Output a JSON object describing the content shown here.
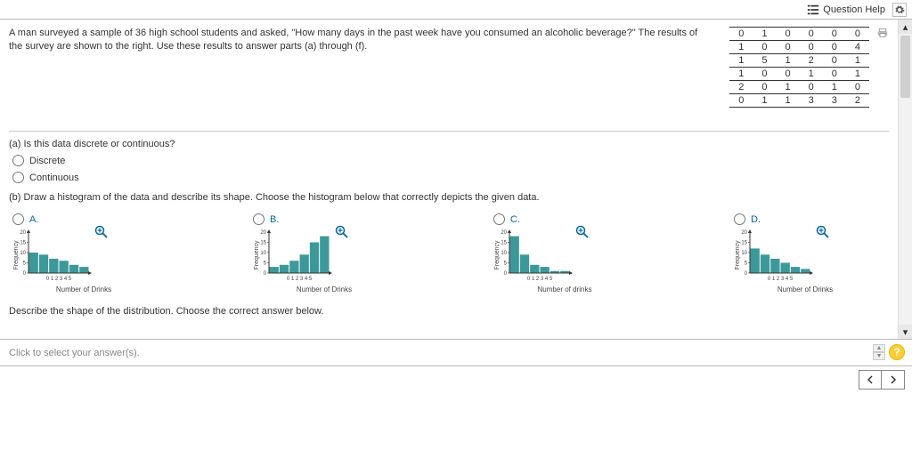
{
  "topbar": {
    "question_help": "Question Help"
  },
  "stem": "A man surveyed a sample of 36 high school students and asked, \"How many days in the past week have you consumed an alcoholic beverage?\" The results of the survey are shown to the right. Use these results to answer parts (a) through (f).",
  "data_rows": [
    [
      "0",
      "1",
      "0",
      "0",
      "0",
      "0"
    ],
    [
      "1",
      "0",
      "0",
      "0",
      "0",
      "4"
    ],
    [
      "1",
      "5",
      "1",
      "2",
      "0",
      "1"
    ],
    [
      "1",
      "0",
      "0",
      "1",
      "0",
      "1"
    ],
    [
      "2",
      "0",
      "1",
      "0",
      "1",
      "0"
    ],
    [
      "0",
      "1",
      "1",
      "3",
      "3",
      "2"
    ]
  ],
  "part_a": {
    "prompt": "(a) Is this data discrete or continuous?",
    "opt1": "Discrete",
    "opt2": "Continuous"
  },
  "part_b": {
    "prompt": "(b) Draw a histogram of the data and describe its shape. Choose the histogram below that correctly depicts the given data.",
    "labels": {
      "A": "A.",
      "B": "B.",
      "C": "C.",
      "D": "D."
    },
    "describe": "Describe the shape of the distribution. Choose the correct answer below."
  },
  "footer": {
    "hint": "Click to select your answer(s)."
  },
  "hist_style": {
    "bar_color": "#3d9999",
    "axis_color": "#333333",
    "ylabel": "Frequency",
    "yticks": [
      "20",
      "15",
      "10",
      "5",
      "0"
    ],
    "xticks": "0 1 2 3 4 5",
    "xlabel_A": "Number of Drinks",
    "xlabel_B": "Number of Drinks",
    "xlabel_C": "Number of drinks",
    "xlabel_D": "Number of Drinks"
  },
  "histograms": {
    "A": [
      10,
      9,
      7,
      6,
      4,
      3
    ],
    "B": [
      3,
      4,
      6,
      9,
      15,
      18
    ],
    "C": [
      18,
      9,
      4,
      3,
      1,
      1
    ],
    "D": [
      12,
      9,
      7,
      5,
      3,
      2
    ]
  }
}
